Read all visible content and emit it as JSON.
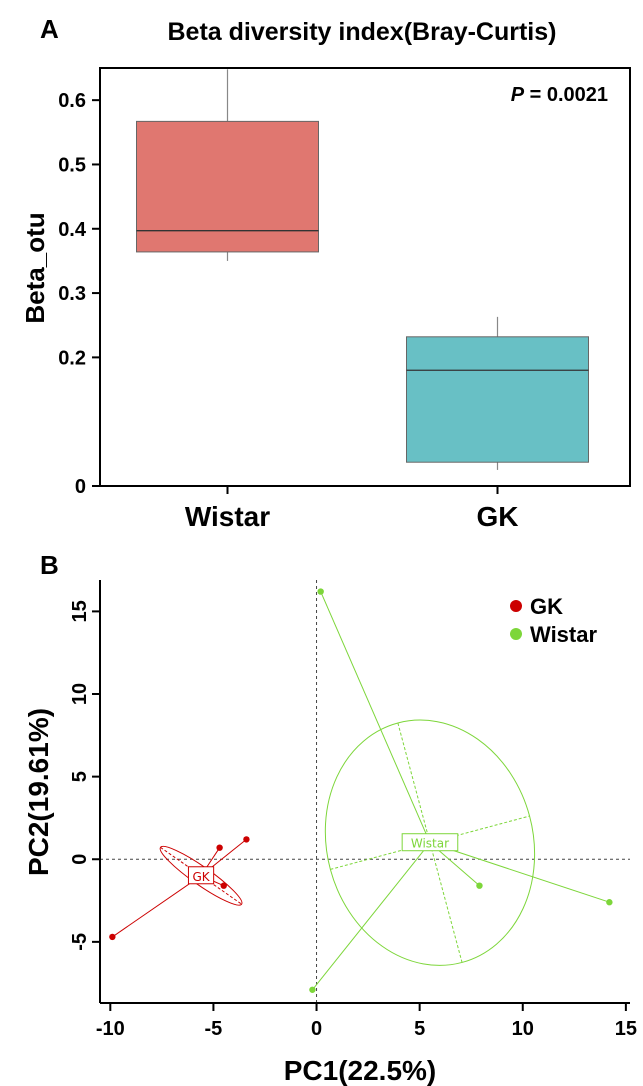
{
  "chart_data": [
    {
      "panel": "A",
      "type": "box",
      "title": "Beta diversity index(Bray-Curtis)",
      "ylabel": "Beta_otu",
      "xlabel": "",
      "annotation_italic": "P",
      "annotation_rest": " = 0.0021",
      "ylim": [
        0,
        0.65
      ],
      "yticks": [
        0,
        0.2,
        0.3,
        0.4,
        0.5,
        0.6
      ],
      "ytick_labels": [
        "0",
        "0.2",
        "0.3",
        "0.4",
        "0.5",
        "0.6"
      ],
      "grid": false,
      "categories": [
        "Wistar",
        "GK"
      ],
      "boxes": [
        {
          "name": "Wistar",
          "min": 0.35,
          "q1": 0.364,
          "median": 0.397,
          "q3": 0.567,
          "max": 0.648,
          "color": "#E07770"
        },
        {
          "name": "GK",
          "min": 0.025,
          "q1": 0.037,
          "median": 0.18,
          "q3": 0.232,
          "max": 0.263,
          "color": "#68C0C5"
        }
      ]
    },
    {
      "panel": "B",
      "type": "scatter",
      "xlabel": "PC1(22.5%)",
      "ylabel": "PC2(19.61%)",
      "xlim": [
        -10.5,
        15.2
      ],
      "ylim": [
        -8.7,
        16.9
      ],
      "xticks": [
        -10,
        -5,
        0,
        5,
        10,
        15
      ],
      "xtick_labels": [
        "-10",
        "-5",
        "0",
        "5",
        "10",
        "15"
      ],
      "yticks": [
        -5,
        0,
        5,
        10,
        15
      ],
      "ytick_labels": [
        "-5",
        "0",
        "5",
        "10",
        "15"
      ],
      "grid": false,
      "reference_lines": {
        "x": 0,
        "y": 0
      },
      "legend_position": "top-right",
      "series": [
        {
          "name": "GK",
          "color": "#CC0000",
          "centroid": {
            "x": -5.6,
            "y": -1.0
          },
          "ellipse": {
            "cx": -5.6,
            "cy": -1.0,
            "rx": 2.4,
            "ry": 0.55,
            "angle_deg": 35
          },
          "points": [
            {
              "x": -9.9,
              "y": -4.7
            },
            {
              "x": -4.7,
              "y": 0.7
            },
            {
              "x": -3.4,
              "y": 1.2
            },
            {
              "x": -4.5,
              "y": -1.6
            }
          ]
        },
        {
          "name": "Wistar",
          "color": "#7DD63A",
          "centroid": {
            "x": 5.5,
            "y": 1.0
          },
          "ellipse": {
            "cx": 5.5,
            "cy": 1.0,
            "rx": 5.0,
            "ry": 7.5,
            "angle_deg": -15
          },
          "points": [
            {
              "x": 0.2,
              "y": 16.2
            },
            {
              "x": -0.2,
              "y": -7.9
            },
            {
              "x": 7.9,
              "y": -1.6
            },
            {
              "x": 14.2,
              "y": -2.6
            }
          ]
        }
      ]
    }
  ]
}
